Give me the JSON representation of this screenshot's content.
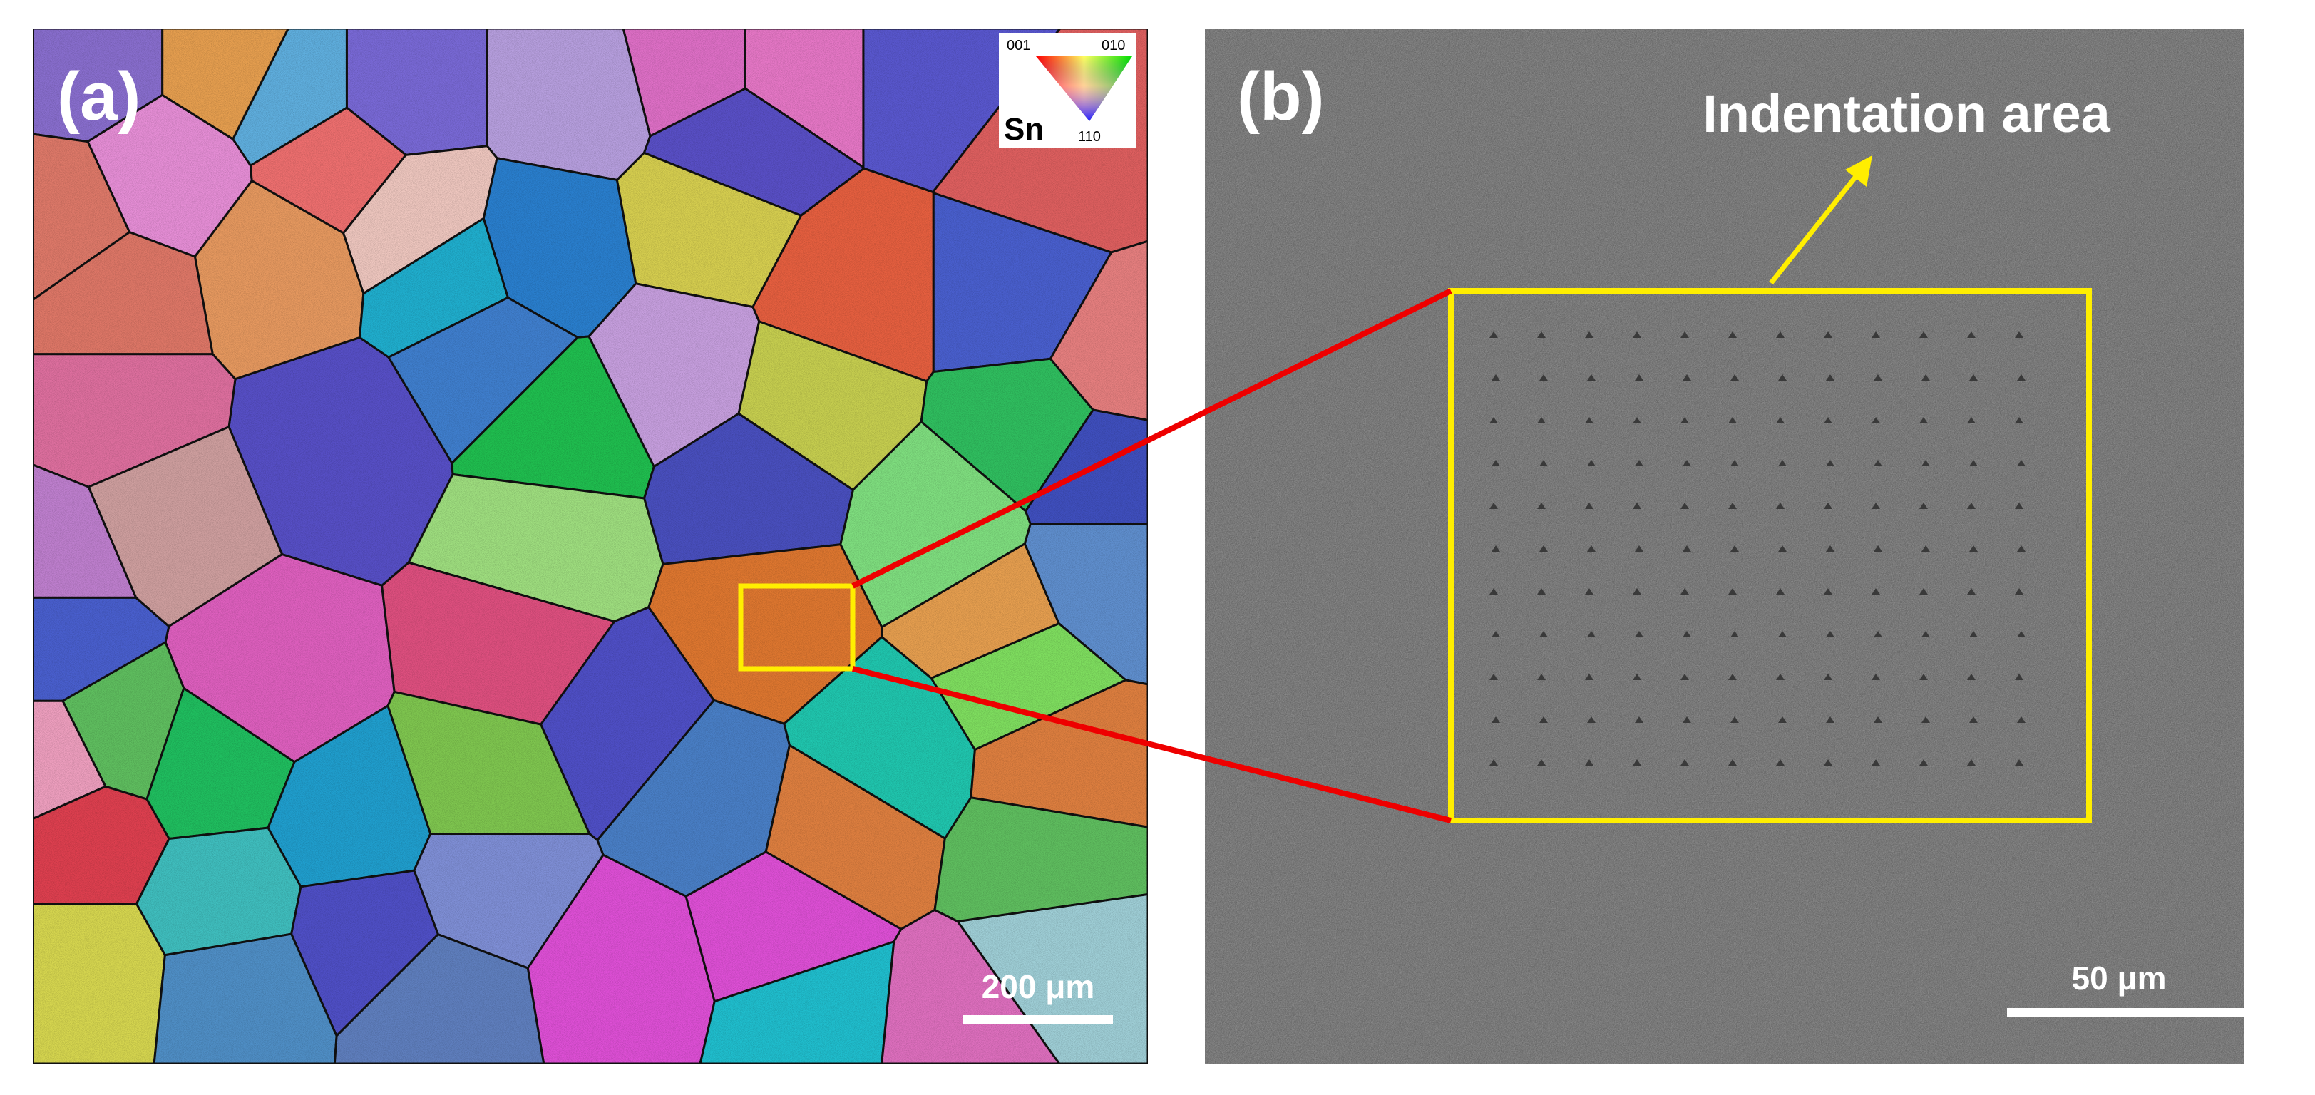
{
  "panel_a": {
    "label": "(a)",
    "legend": {
      "phase": "Sn",
      "corners": [
        "001",
        "010",
        "110"
      ]
    },
    "scale_bar": "200 μm"
  },
  "panel_b": {
    "label": "(b)",
    "annotation": "Indentation area",
    "scale_bar": "50 μm"
  }
}
